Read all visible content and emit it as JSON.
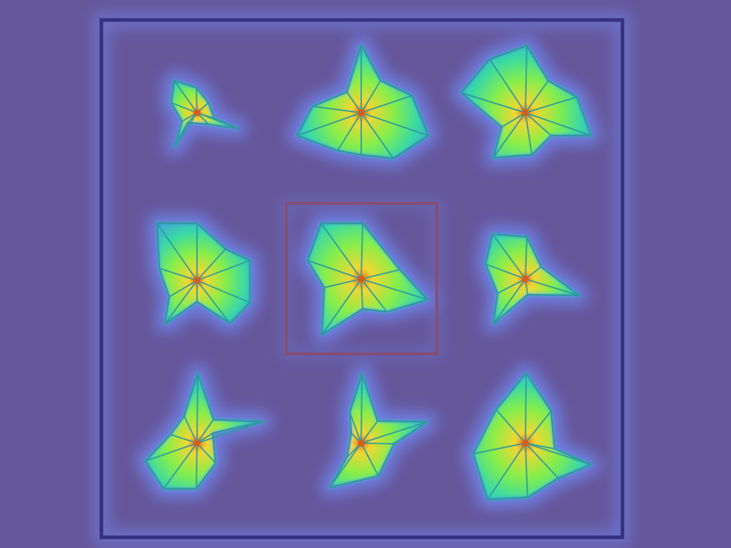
{
  "colors": {
    "background": "#66579b",
    "glow": "#6f86ee",
    "outer_frame": "#2f2b78",
    "selected_frame": "#8a4b6c",
    "edge_line": "#2f9aa0",
    "heat_stops": [
      "#e05a16",
      "#f4d632",
      "#86ee4a",
      "#38d9a7",
      "#41a4d7"
    ]
  },
  "grid": {
    "rows": 3,
    "columns": 3,
    "selected_index": 4
  }
}
